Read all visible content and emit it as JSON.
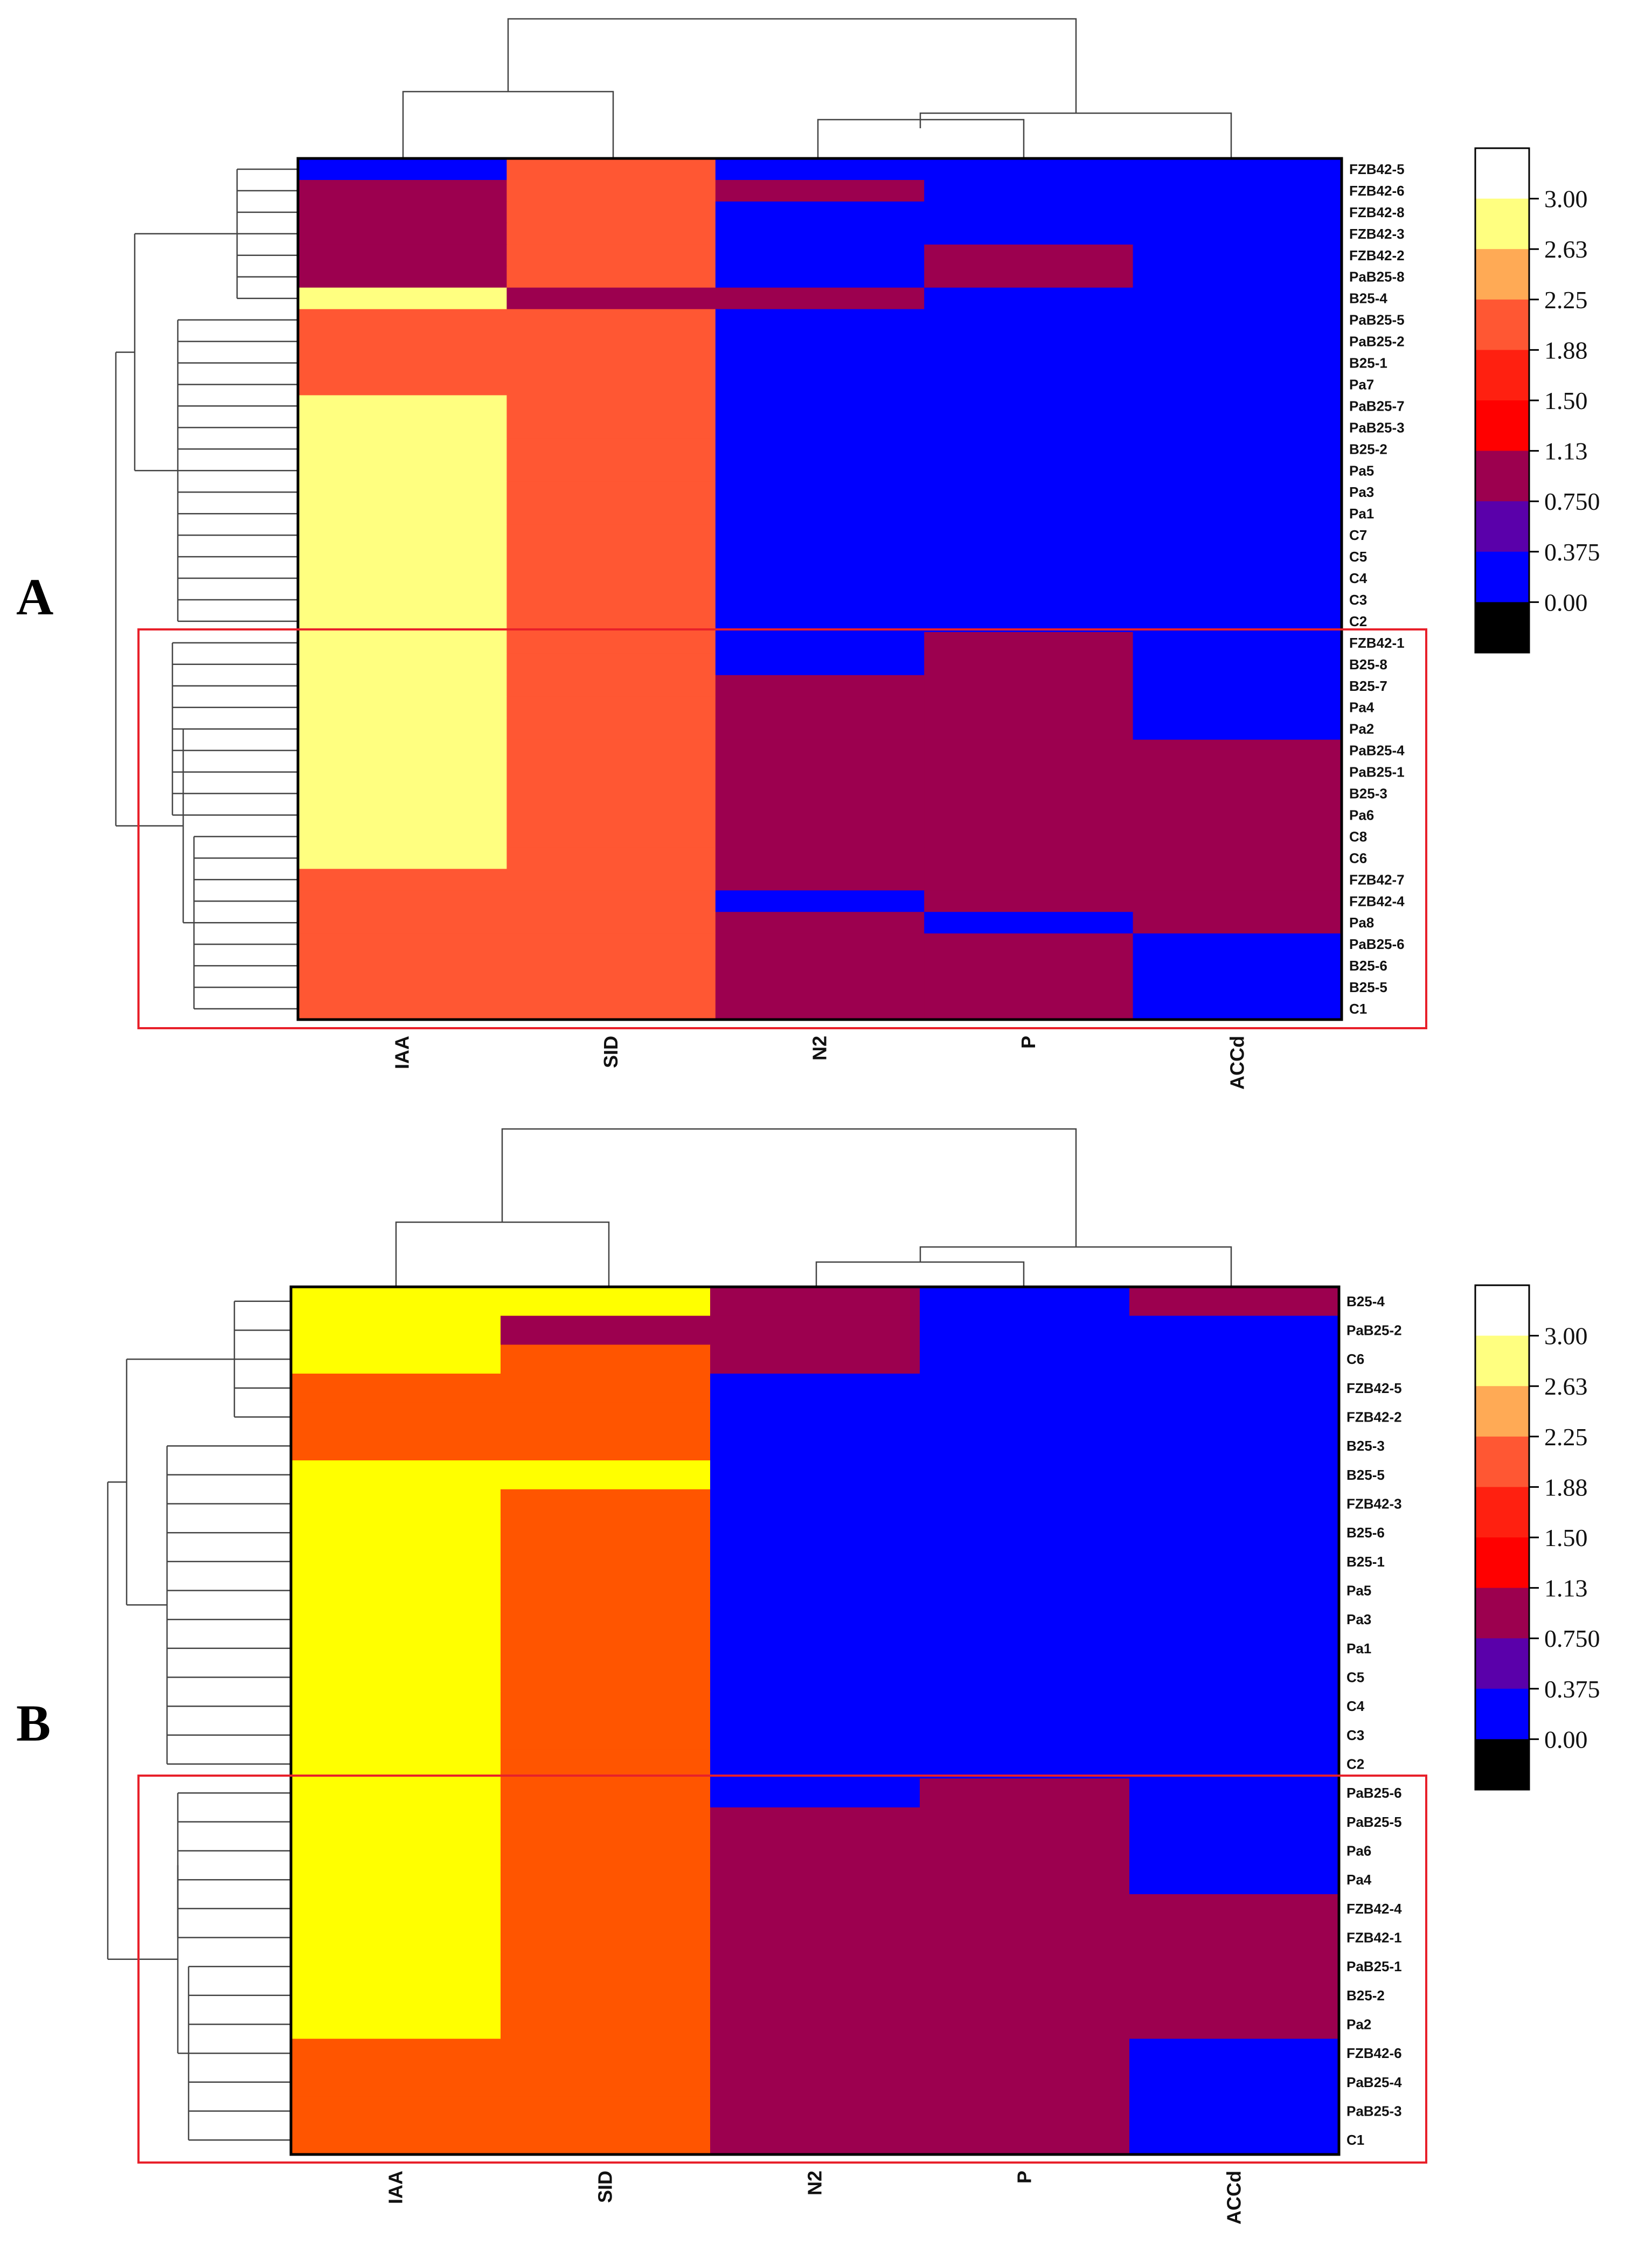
{
  "colors": {
    "c0": "#0000ff",
    "c1": "#9c004f",
    "c2": "#ff5733",
    "c3": "#ffff80",
    "c4": "#ffff00",
    "c5": "#ff5500",
    "frame": "#000000",
    "box": "#e8202a",
    "tree": "#444444"
  },
  "chart_data": [
    {
      "type": "heatmap",
      "panel": "A",
      "columns": [
        "IAA",
        "SID",
        "N2",
        "P",
        "ACCd"
      ],
      "rows": [
        "FZB42-5",
        "FZB42-6",
        "FZB42-8",
        "FZB42-3",
        "FZB42-2",
        "PaB25-8",
        "B25-4",
        "PaB25-5",
        "PaB25-2",
        "B25-1",
        "Pa7",
        "PaB25-7",
        "PaB25-3",
        "B25-2",
        "Pa5",
        "Pa3",
        "Pa1",
        "C7",
        "C5",
        "C4",
        "C3",
        "C2",
        "FZB42-1",
        "B25-8",
        "B25-7",
        "Pa4",
        "Pa2",
        "PaB25-4",
        "PaB25-1",
        "B25-3",
        "Pa6",
        "C8",
        "C6",
        "FZB42-7",
        "FZB42-4",
        "Pa8",
        "PaB25-6",
        "B25-6",
        "B25-5",
        "C1"
      ],
      "values": [
        [
          0,
          2,
          0,
          0,
          0
        ],
        [
          1,
          2,
          1,
          0,
          0
        ],
        [
          1,
          2,
          0,
          0,
          0
        ],
        [
          1,
          2,
          0,
          0,
          0
        ],
        [
          1,
          2,
          0,
          1,
          0
        ],
        [
          1,
          2,
          0,
          1,
          0
        ],
        [
          3,
          1,
          1,
          0,
          0
        ],
        [
          2,
          2,
          0,
          0,
          0
        ],
        [
          2,
          2,
          0,
          0,
          0
        ],
        [
          2,
          2,
          0,
          0,
          0
        ],
        [
          2,
          2,
          0,
          0,
          0
        ],
        [
          3,
          2,
          0,
          0,
          0
        ],
        [
          3,
          2,
          0,
          0,
          0
        ],
        [
          3,
          2,
          0,
          0,
          0
        ],
        [
          3,
          2,
          0,
          0,
          0
        ],
        [
          3,
          2,
          0,
          0,
          0
        ],
        [
          3,
          2,
          0,
          0,
          0
        ],
        [
          3,
          2,
          0,
          0,
          0
        ],
        [
          3,
          2,
          0,
          0,
          0
        ],
        [
          3,
          2,
          0,
          0,
          0
        ],
        [
          3,
          2,
          0,
          0,
          0
        ],
        [
          3,
          2,
          0,
          0,
          0
        ],
        [
          3,
          2,
          0,
          1,
          0
        ],
        [
          3,
          2,
          0,
          1,
          0
        ],
        [
          3,
          2,
          1,
          1,
          0
        ],
        [
          3,
          2,
          1,
          1,
          0
        ],
        [
          3,
          2,
          1,
          1,
          0
        ],
        [
          3,
          2,
          1,
          1,
          1
        ],
        [
          3,
          2,
          1,
          1,
          1
        ],
        [
          3,
          2,
          1,
          1,
          1
        ],
        [
          3,
          2,
          1,
          1,
          1
        ],
        [
          3,
          2,
          1,
          1,
          1
        ],
        [
          3,
          2,
          1,
          1,
          1
        ],
        [
          2,
          2,
          1,
          1,
          1
        ],
        [
          2,
          2,
          0,
          1,
          1
        ],
        [
          2,
          2,
          1,
          0,
          1
        ],
        [
          2,
          2,
          1,
          1,
          0
        ],
        [
          2,
          2,
          1,
          1,
          0
        ],
        [
          2,
          2,
          1,
          1,
          0
        ],
        [
          2,
          2,
          1,
          1,
          0
        ]
      ],
      "value_colors": [
        "c0",
        "c1",
        "c2",
        "c3"
      ],
      "highlight_rows": [
        "FZB42-1",
        "C1"
      ]
    },
    {
      "type": "heatmap",
      "panel": "B",
      "columns": [
        "IAA",
        "SID",
        "N2",
        "P",
        "ACCd"
      ],
      "rows": [
        "B25-4",
        "PaB25-2",
        "C6",
        "FZB42-5",
        "FZB42-2",
        "B25-3",
        "B25-5",
        "FZB42-3",
        "B25-6",
        "B25-1",
        "Pa5",
        "Pa3",
        "Pa1",
        "C5",
        "C4",
        "C3",
        "C2",
        "PaB25-6",
        "PaB25-5",
        "Pa6",
        "Pa4",
        "FZB42-4",
        "FZB42-1",
        "PaB25-1",
        "B25-2",
        "Pa2",
        "FZB42-6",
        "PaB25-4",
        "PaB25-3",
        "C1"
      ],
      "values": [
        [
          3,
          3,
          1,
          0,
          1
        ],
        [
          3,
          1,
          1,
          0,
          0
        ],
        [
          3,
          2,
          1,
          0,
          0
        ],
        [
          2,
          2,
          0,
          0,
          0
        ],
        [
          2,
          2,
          0,
          0,
          0
        ],
        [
          2,
          2,
          0,
          0,
          0
        ],
        [
          3,
          3,
          0,
          0,
          0
        ],
        [
          3,
          2,
          0,
          0,
          0
        ],
        [
          3,
          2,
          0,
          0,
          0
        ],
        [
          3,
          2,
          0,
          0,
          0
        ],
        [
          3,
          2,
          0,
          0,
          0
        ],
        [
          3,
          2,
          0,
          0,
          0
        ],
        [
          3,
          2,
          0,
          0,
          0
        ],
        [
          3,
          2,
          0,
          0,
          0
        ],
        [
          3,
          2,
          0,
          0,
          0
        ],
        [
          3,
          2,
          0,
          0,
          0
        ],
        [
          3,
          2,
          0,
          0,
          0
        ],
        [
          3,
          2,
          0,
          1,
          0
        ],
        [
          3,
          2,
          1,
          1,
          0
        ],
        [
          3,
          2,
          1,
          1,
          0
        ],
        [
          3,
          2,
          1,
          1,
          0
        ],
        [
          3,
          2,
          1,
          1,
          1
        ],
        [
          3,
          2,
          1,
          1,
          1
        ],
        [
          3,
          2,
          1,
          1,
          1
        ],
        [
          3,
          2,
          1,
          1,
          1
        ],
        [
          3,
          2,
          1,
          1,
          1
        ],
        [
          2,
          2,
          1,
          1,
          0
        ],
        [
          2,
          2,
          1,
          1,
          0
        ],
        [
          2,
          2,
          1,
          1,
          0
        ],
        [
          2,
          2,
          1,
          1,
          0
        ]
      ],
      "value_colors": [
        "c0",
        "c1",
        "c5",
        "c4"
      ],
      "highlight_rows": [
        "PaB25-6",
        "C1"
      ]
    }
  ],
  "legend": {
    "labels": [
      "3.00",
      "2.63",
      "2.25",
      "1.88",
      "1.50",
      "1.13",
      "0.750",
      "0.375",
      "0.00"
    ],
    "swatches": [
      "#ffffff",
      "#ffff80",
      "#ffaa55",
      "#ff5733",
      "#ff2010",
      "#ff0000",
      "#9c004f",
      "#5a00aa",
      "#0000ff",
      "#000000"
    ]
  }
}
